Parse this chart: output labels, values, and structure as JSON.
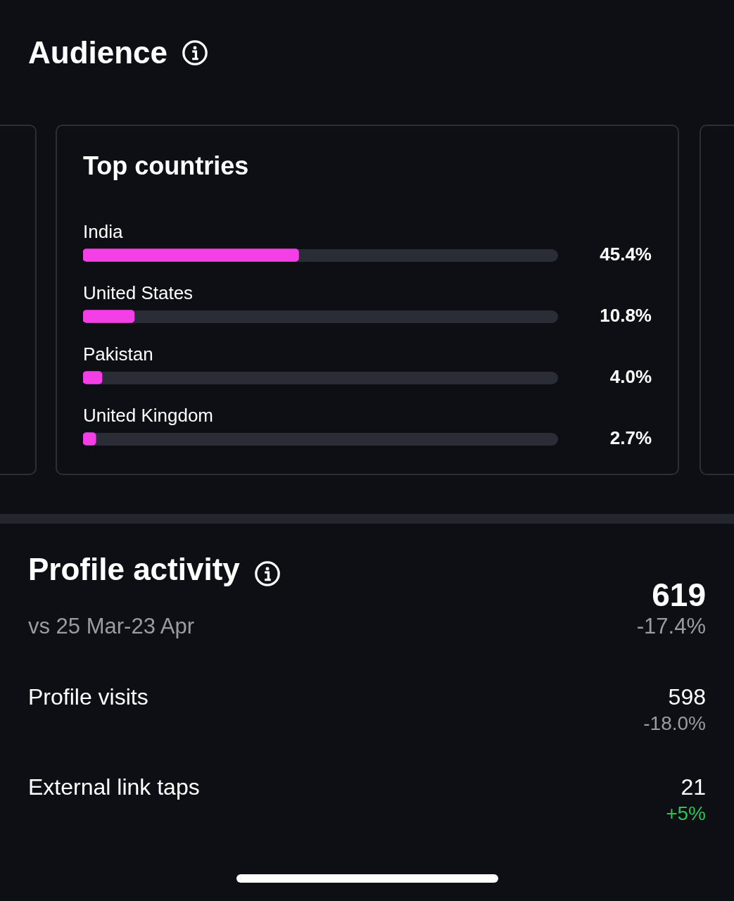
{
  "chart_data": [
    {
      "type": "bar",
      "orientation": "horizontal",
      "title": "Audience",
      "subtitle": "Top countries",
      "categories": [
        "India",
        "United States",
        "Pakistan",
        "United Kingdom"
      ],
      "values": [
        45.4,
        10.8,
        4.0,
        2.7
      ],
      "value_labels": [
        "45.4%",
        "10.8%",
        "4.0%",
        "2.7%"
      ],
      "color": "#f53fe6",
      "xlim": [
        0,
        100
      ],
      "legend": false,
      "tick_labels": false
    },
    {
      "type": "other",
      "title": "Profile activity",
      "subtitle": "vs 25 Mar-23 Apr",
      "annotations": [
        "619",
        "-17.4%",
        "Profile visits",
        "598",
        "-18.0%",
        "External link taps",
        "21",
        "+5%"
      ],
      "colors": [
        "#ffffff",
        "#9a9ca3",
        "#ffffff",
        "#ffffff",
        "#9a9ca3",
        "#ffffff",
        "#ffffff",
        "#2fc35a"
      ]
    }
  ]
}
